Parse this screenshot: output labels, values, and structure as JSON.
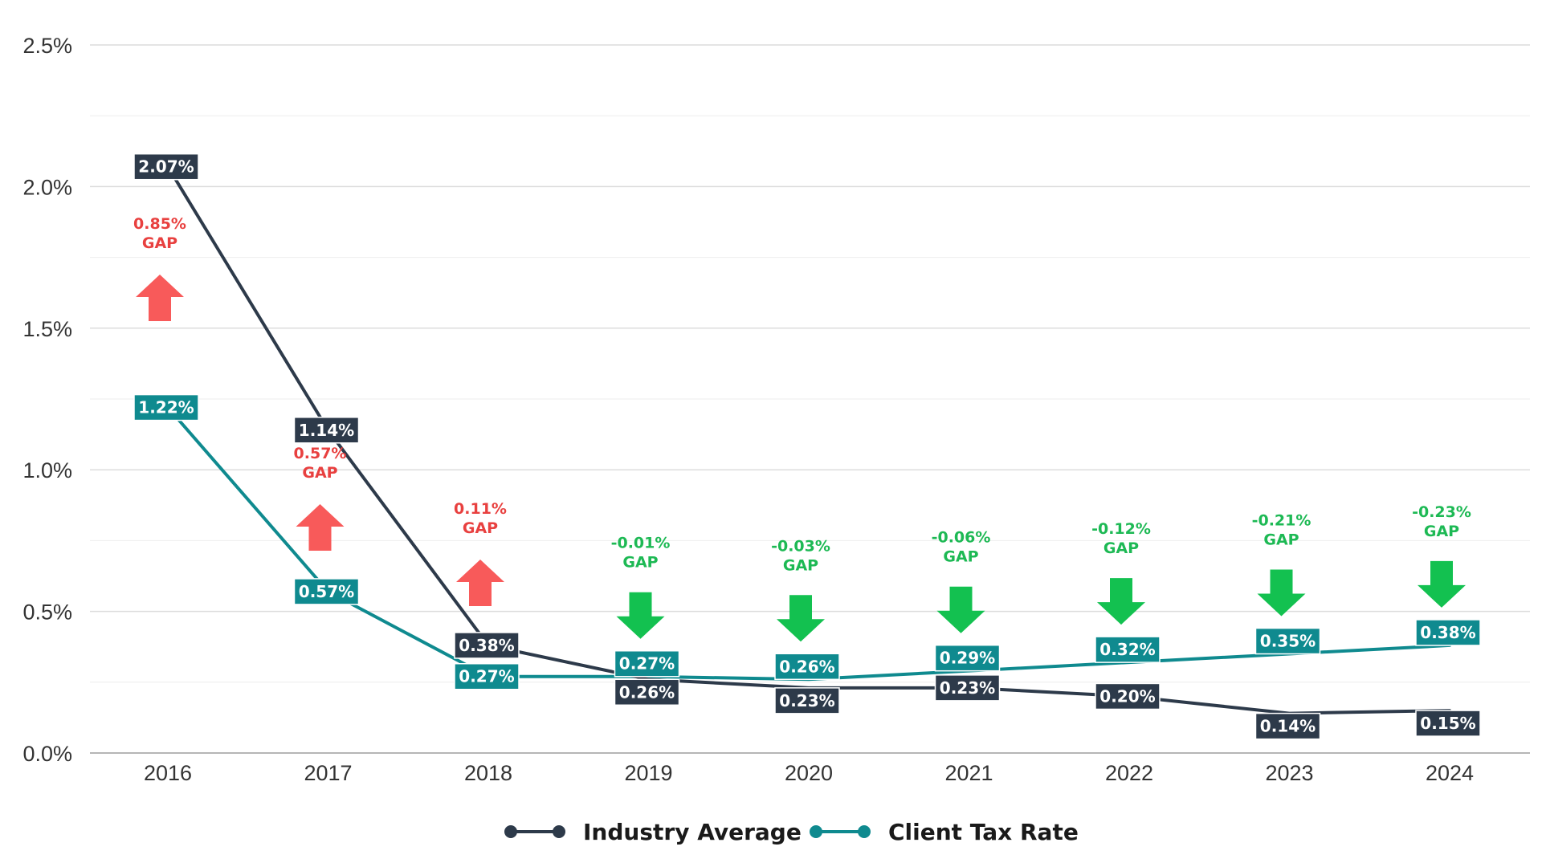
{
  "chart_data": {
    "type": "line",
    "title": "",
    "xlabel": "",
    "ylabel": "",
    "x": [
      "2016",
      "2017",
      "2018",
      "2019",
      "2020",
      "2021",
      "2022",
      "2023",
      "2024"
    ],
    "ylim": [
      0,
      2.5
    ],
    "yticks": [
      "0.0%",
      "0.5%",
      "1.0%",
      "1.5%",
      "2.0%",
      "2.5%"
    ],
    "grid": true,
    "legend_position": "bottom-center",
    "series": [
      {
        "name": "Industry Average",
        "color": "#2d3a4a",
        "values": [
          2.07,
          1.14,
          0.38,
          0.26,
          0.23,
          0.23,
          0.2,
          0.14,
          0.15
        ],
        "labels": [
          "2.07%",
          "1.14%",
          "0.38%",
          "0.26%",
          "0.23%",
          "0.23%",
          "0.20%",
          "0.14%",
          "0.15%"
        ]
      },
      {
        "name": "Client Tax Rate",
        "color": "#0f8a8f",
        "values": [
          1.22,
          0.57,
          0.27,
          0.27,
          0.26,
          0.29,
          0.32,
          0.35,
          0.38
        ],
        "labels": [
          "1.22%",
          "0.57%",
          "0.27%",
          "0.27%",
          "0.26%",
          "0.29%",
          "0.32%",
          "0.35%",
          "0.38%"
        ]
      }
    ],
    "annotations": [
      {
        "year": "2016",
        "value": "0.85%",
        "word": "GAP",
        "direction": "up"
      },
      {
        "year": "2017",
        "value": "0.57%",
        "word": "GAP",
        "direction": "up"
      },
      {
        "year": "2018",
        "value": "0.11%",
        "word": "GAP",
        "direction": "up"
      },
      {
        "year": "2019",
        "value": "-0.01%",
        "word": "GAP",
        "direction": "down"
      },
      {
        "year": "2020",
        "value": "-0.03%",
        "word": "GAP",
        "direction": "down"
      },
      {
        "year": "2021",
        "value": "-0.06%",
        "word": "GAP",
        "direction": "down"
      },
      {
        "year": "2022",
        "value": "-0.12%",
        "word": "GAP",
        "direction": "down"
      },
      {
        "year": "2023",
        "value": "-0.21%",
        "word": "GAP",
        "direction": "down"
      },
      {
        "year": "2024",
        "value": "-0.23%",
        "word": "GAP",
        "direction": "down"
      }
    ],
    "colors": {
      "gap_up": "#e8403f",
      "arrow_up": "#f85a5a",
      "gap_down": "#1db954",
      "arrow_down": "#13c150",
      "grid": "#dcdcdc",
      "axis": "#b5b5b5"
    }
  }
}
